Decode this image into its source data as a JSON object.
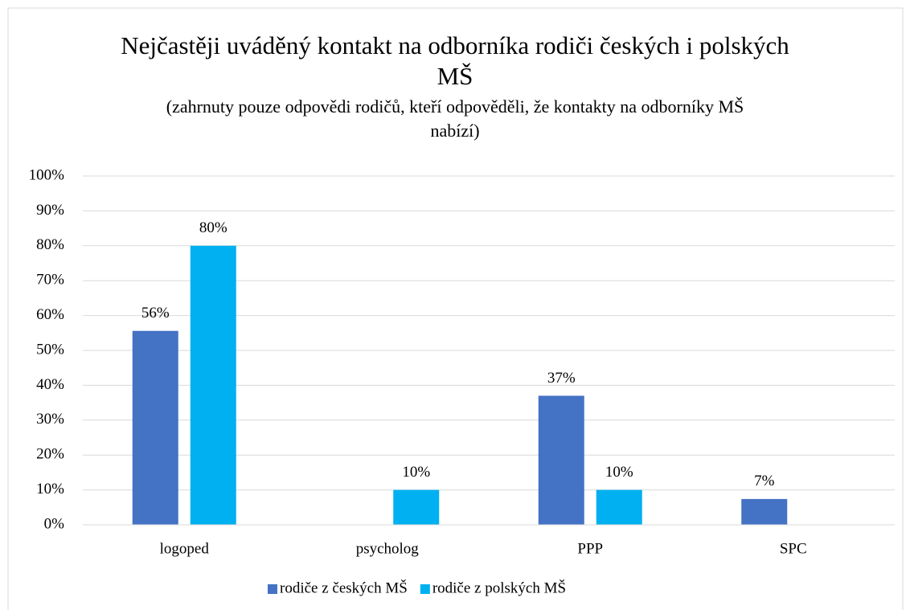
{
  "chart_data": {
    "type": "bar",
    "title": "Nejčastěji uváděný kontakt na odborníka rodiči českých i polských MŠ",
    "subtitle": "(zahrnuty pouze odpovědi rodičů, kteří odpověděli, že kontakty na odborníky MŠ nabízí)",
    "categories": [
      "logoped",
      "psycholog",
      "PPP",
      "SPC"
    ],
    "series": [
      {
        "name": "rodiče z českých MŠ",
        "color": "#4472c4",
        "values": [
          55.6,
          null,
          37,
          7.4
        ],
        "value_labels": [
          "56%",
          null,
          "37%",
          "7%"
        ]
      },
      {
        "name": "rodiče z polských MŠ",
        "color": "#00b0f0",
        "values": [
          80,
          10,
          10,
          null
        ],
        "value_labels": [
          "80%",
          "10%",
          "10%",
          null
        ]
      }
    ],
    "ylim": [
      0,
      100
    ],
    "yticks": [
      {
        "value": 0,
        "label": "0%"
      },
      {
        "value": 10,
        "label": "10%"
      },
      {
        "value": 20,
        "label": "20%"
      },
      {
        "value": 30,
        "label": "30%"
      },
      {
        "value": 40,
        "label": "40%"
      },
      {
        "value": 50,
        "label": "50%"
      },
      {
        "value": 60,
        "label": "60%"
      },
      {
        "value": 70,
        "label": "70%"
      },
      {
        "value": 80,
        "label": "80%"
      },
      {
        "value": 90,
        "label": "90%"
      },
      {
        "value": 100,
        "label": "100%"
      }
    ],
    "grid": true,
    "legend": "bottom"
  }
}
